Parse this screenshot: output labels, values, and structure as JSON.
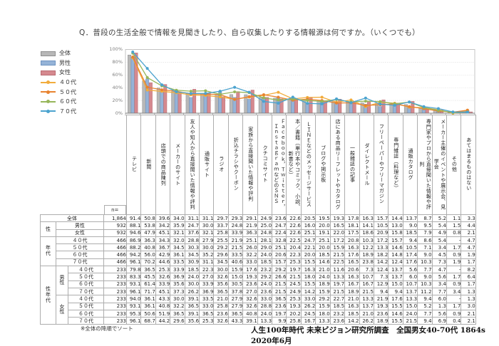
{
  "title": "Q．普段の生活全般で情報を見聞きしたり、自ら収集したりする情報源は何ですか。（いくつでも）",
  "footnote": "※全体の降順でソート",
  "caption": "人生100年時代 未来ビジョン研究所調査　全国男女40-70代 1864s　2020年6月",
  "chart_data": {
    "type": "bar+line",
    "title": "普段の生活全般の情報源（複数回答・%）",
    "ylim": [
      0,
      100
    ],
    "grid": "dotted-horizontal",
    "legend_position": "left",
    "yticks": [
      {
        "label": "0%",
        "value": 0
      },
      {
        "label": "20%",
        "value": 20
      },
      {
        "label": "40%",
        "value": 40
      },
      {
        "label": "60%",
        "value": 60
      },
      {
        "label": "80%",
        "value": 80
      },
      {
        "label": "100%",
        "value": 100
      }
    ],
    "categories": [
      "テレビ",
      "新聞",
      "店頭での商品陳列",
      "メーカーのサイト",
      "友人や知人から直接聞いた情報や評判",
      "通販サイト",
      "ラジオ",
      "折込チラシやクーポン",
      "家族から直接聞いた情報や評判",
      "クチコミサイト",
      "Ｆａｃｅｂｏｏｋ，Ｔｗｉｔｔｅｒ，ＩｎｓｔａｇｒａｍなどのＳＮＳ",
      "本／書籍（単行本やコミック、小説、新書など）",
      "ＬＩＮＥなどのメッセージサービス",
      "ブログや掲示板",
      "店にある商品リーフレットやカタログ",
      "一般雑誌の記事",
      "ダイレクトメール",
      "フリーペーパーやフリーマガジン",
      "専門雑誌（料理など）",
      "通販カタログ",
      "専門家やプロから直接聞いた情報や評判",
      "メーカー主催のイベントや展示会、見学会",
      "その他",
      "あてはまるものはない"
    ],
    "bar_series": [
      {
        "name": "全体",
        "color": "#b8b8b8",
        "edge": "#8f8f8f",
        "values": [
          91.4,
          50.8,
          39.6,
          34.0,
          31.1,
          31.1,
          29.7,
          29.3,
          29.1,
          24.9,
          23.6,
          22.6,
          20.5,
          19.5,
          19.3,
          17.8,
          16.3,
          15.7,
          14.4,
          13.7,
          8.7,
          5.2,
          1.1,
          3.3
        ]
      },
      {
        "name": "男性",
        "color": "#95b3d7",
        "edge": "#6e93c0",
        "values": [
          88.1,
          53.8,
          34.2,
          35.9,
          24.7,
          30.0,
          33.7,
          24.8,
          21.9,
          25.0,
          24.7,
          22.6,
          16.0,
          20.0,
          16.5,
          18.1,
          14.1,
          10.5,
          13.0,
          9.0,
          9.5,
          5.4,
          1.5,
          4.4
        ]
      },
      {
        "name": "女性",
        "color": "#d5898f",
        "edge": "#b96b72",
        "values": [
          94.6,
          47.9,
          45.1,
          32.1,
          37.6,
          32.1,
          25.8,
          33.9,
          36.3,
          24.8,
          22.4,
          22.6,
          25.1,
          19.1,
          22.0,
          17.5,
          18.6,
          20.9,
          15.8,
          18.5,
          7.9,
          4.9,
          0.8,
          2.1
        ]
      }
    ],
    "line_series": [
      {
        "name": "４０代",
        "color": "#f2ac3c",
        "values": [
          86.9,
          36.3,
          34.3,
          32.0,
          28.8,
          27.9,
          25.5,
          21.9,
          25.1,
          28.1,
          32.8,
          22.5,
          24.7,
          25.1,
          17.2,
          20.8,
          10.3,
          17.2,
          15.7,
          9.4,
          8.6,
          5.4,
          0,
          4.7
        ]
      },
      {
        "name": "５０代",
        "color": "#e8832f",
        "values": [
          88.2,
          40.8,
          36.7,
          34.5,
          30.3,
          30.0,
          29.2,
          21.5,
          26.0,
          29.0,
          25.1,
          20.4,
          22.1,
          20.0,
          15.9,
          16.3,
          12.2,
          13.3,
          14.6,
          10.5,
          7.1,
          3.4,
          1.7,
          4.7
        ]
      },
      {
        "name": "６０代",
        "color": "#97b65a",
        "values": [
          94.2,
          56.0,
          42.9,
          36.1,
          34.5,
          35.2,
          29.6,
          33.5,
          32.2,
          24.0,
          20.6,
          22.3,
          20.0,
          18.5,
          21.5,
          17.6,
          18.9,
          18.2,
          14.8,
          17.4,
          9.0,
          4.5,
          0.9,
          1.9
        ]
      },
      {
        "name": "７０代",
        "color": "#4ba3cf",
        "values": [
          96.1,
          70.2,
          44.6,
          33.5,
          30.9,
          31.1,
          34.5,
          40.6,
          33.0,
          18.5,
          15.7,
          25.3,
          15.5,
          14.6,
          22.5,
          16.5,
          23.8,
          14.2,
          12.4,
          17.6,
          10.3,
          7.3,
          1.9,
          1.7
        ]
      }
    ]
  },
  "table": {
    "n_header": "n=",
    "rows": [
      {
        "prefix": [
          {
            "label": "全体",
            "colspan": 3
          }
        ],
        "n": "1,864",
        "values": [
          "91.4",
          "50.8",
          "39.6",
          "34.0",
          "31.1",
          "31.1",
          "29.7",
          "29.3",
          "29.1",
          "24.9",
          "23.6",
          "22.6",
          "20.5",
          "19.5",
          "19.3",
          "17.8",
          "16.3",
          "15.7",
          "14.4",
          "13.7",
          "8.7",
          "5.2",
          "1.1",
          "3.3"
        ]
      },
      {
        "prefix": [
          {
            "label": "性",
            "rowspan": 2
          },
          {
            "label": "男性",
            "colspan": 2
          }
        ],
        "n": "932",
        "values": [
          "88.1",
          "53.8",
          "34.2",
          "35.9",
          "24.7",
          "30.0",
          "33.7",
          "24.8",
          "21.9",
          "25.0",
          "24.7",
          "22.6",
          "16.0",
          "20.0",
          "16.5",
          "18.1",
          "14.1",
          "10.5",
          "13.0",
          "9.0",
          "9.5",
          "5.4",
          "1.5",
          "4.4"
        ]
      },
      {
        "prefix": [
          {
            "label": "女性",
            "colspan": 2
          }
        ],
        "n": "932",
        "values": [
          "94.6",
          "47.9",
          "45.1",
          "32.1",
          "37.6",
          "32.1",
          "25.8",
          "33.9",
          "36.3",
          "24.8",
          "22.4",
          "22.6",
          "25.1",
          "19.1",
          "22.0",
          "17.5",
          "18.6",
          "20.9",
          "15.8",
          "18.5",
          "7.9",
          "4.9",
          "0.8",
          "2.1"
        ]
      },
      {
        "prefix": [
          {
            "label": "年代",
            "rowspan": 4,
            "vert": true
          },
          {
            "label": "４０代",
            "colspan": 2
          }
        ],
        "n": "466",
        "values": [
          "86.9",
          "36.3",
          "34.3",
          "32.0",
          "28.8",
          "27.9",
          "25.5",
          "21.9",
          "25.1",
          "28.1",
          "32.8",
          "22.5",
          "24.7",
          "25.1",
          "17.2",
          "20.8",
          "10.3",
          "17.2",
          "15.7",
          "9.4",
          "8.6",
          "5.4",
          "-",
          "4.7"
        ]
      },
      {
        "prefix": [
          {
            "label": "５０代",
            "colspan": 2
          }
        ],
        "n": "466",
        "values": [
          "88.2",
          "40.8",
          "36.7",
          "34.5",
          "30.3",
          "30.0",
          "29.2",
          "21.5",
          "26.0",
          "29.0",
          "25.1",
          "20.4",
          "22.1",
          "20.0",
          "15.9",
          "16.3",
          "12.2",
          "13.3",
          "14.6",
          "10.5",
          "7.1",
          "3.4",
          "1.7",
          "4.7"
        ]
      },
      {
        "prefix": [
          {
            "label": "６０代",
            "colspan": 2
          }
        ],
        "n": "466",
        "values": [
          "94.2",
          "56.0",
          "42.9",
          "36.1",
          "34.5",
          "35.2",
          "29.6",
          "33.5",
          "32.2",
          "24.0",
          "20.6",
          "22.3",
          "20.0",
          "18.5",
          "21.5",
          "17.6",
          "18.9",
          "18.2",
          "14.8",
          "17.4",
          "9.0",
          "4.5",
          "0.9",
          "1.9"
        ]
      },
      {
        "prefix": [
          {
            "label": "７０代",
            "colspan": 2
          }
        ],
        "n": "466",
        "values": [
          "96.1",
          "70.2",
          "44.6",
          "33.5",
          "30.9",
          "31.1",
          "34.5",
          "40.6",
          "33.0",
          "18.5",
          "15.7",
          "25.3",
          "15.5",
          "14.6",
          "22.5",
          "16.5",
          "23.8",
          "14.2",
          "12.4",
          "17.6",
          "10.3",
          "7.3",
          "1.9",
          "1.7"
        ]
      },
      {
        "prefix": [
          {
            "label": "性年代",
            "rowspan": 8,
            "vert": true
          },
          {
            "label": "男性",
            "rowspan": 4,
            "vert": true
          },
          {
            "label": "４０代"
          }
        ],
        "n": "233",
        "values": [
          "79.8",
          "36.5",
          "25.3",
          "33.9",
          "18.5",
          "22.3",
          "30.0",
          "15.9",
          "17.6",
          "23.2",
          "29.2",
          "19.7",
          "16.3",
          "21.0",
          "11.6",
          "20.6",
          "7.3",
          "12.4",
          "13.7",
          "5.6",
          "7.7",
          "4.7",
          "-",
          "8.2"
        ]
      },
      {
        "prefix": [
          {
            "label": "５０代"
          }
        ],
        "n": "233",
        "values": [
          "83.3",
          "45.5",
          "32.6",
          "36.9",
          "24.0",
          "27.0",
          "32.6",
          "15.0",
          "19.3",
          "29.2",
          "26.6",
          "21.5",
          "18.0",
          "24.0",
          "13.3",
          "16.3",
          "10.7",
          "7.3",
          "13.7",
          "6.0",
          "9.0",
          "5.6",
          "1.7",
          "6.4"
        ]
      },
      {
        "prefix": [
          {
            "label": "６０代"
          }
        ],
        "n": "233",
        "values": [
          "93.1",
          "61.4",
          "33.9",
          "35.6",
          "30.0",
          "33.9",
          "35.6",
          "30.5",
          "23.6",
          "24.0",
          "21.5",
          "24.5",
          "15.5",
          "18.9",
          "19.7",
          "16.7",
          "16.7",
          "12.9",
          "15.0",
          "10.7",
          "10.3",
          "3.4",
          "0.9",
          "1.7"
        ]
      },
      {
        "prefix": [
          {
            "label": "７０代"
          }
        ],
        "n": "233",
        "values": [
          "96.1",
          "71.7",
          "45.1",
          "37.3",
          "26.2",
          "36.9",
          "36.5",
          "37.8",
          "27.0",
          "23.6",
          "21.5",
          "24.9",
          "14.2",
          "15.9",
          "21.5",
          "18.9",
          "21.5",
          "9.4",
          "9.4",
          "13.7",
          "11.2",
          "7.7",
          "3.4",
          "1.3"
        ]
      },
      {
        "prefix": [
          {
            "label": "女性",
            "rowspan": 4,
            "vert": true
          },
          {
            "label": "４０代"
          }
        ],
        "n": "233",
        "values": [
          "94.0",
          "36.1",
          "43.3",
          "30.0",
          "39.1",
          "33.5",
          "21.0",
          "27.9",
          "32.6",
          "33.0",
          "36.5",
          "25.3",
          "33.0",
          "29.2",
          "22.7",
          "21.0",
          "13.3",
          "21.9",
          "17.6",
          "13.3",
          "9.4",
          "6.0",
          "-",
          "1.3"
        ]
      },
      {
        "prefix": [
          {
            "label": "５０代"
          }
        ],
        "n": "233",
        "values": [
          "93.1",
          "36.1",
          "40.8",
          "32.2",
          "36.5",
          "33.0",
          "25.8",
          "27.9",
          "32.6",
          "28.8",
          "23.6",
          "19.3",
          "26.2",
          "15.9",
          "18.5",
          "16.3",
          "13.7",
          "19.3",
          "15.5",
          "15.0",
          "5.2",
          "1.3",
          "1.7",
          "3.0"
        ]
      },
      {
        "prefix": [
          {
            "label": "６０代"
          }
        ],
        "n": "233",
        "values": [
          "95.3",
          "50.6",
          "51.9",
          "36.5",
          "39.1",
          "36.5",
          "23.6",
          "36.5",
          "40.8",
          "24.0",
          "19.7",
          "20.2",
          "24.5",
          "18.0",
          "23.2",
          "18.5",
          "21.0",
          "23.6",
          "14.6",
          "24.0",
          "7.7",
          "5.6",
          "0.9",
          "2.1"
        ]
      },
      {
        "prefix": [
          {
            "label": "７０代"
          }
        ],
        "n": "233",
        "values": [
          "96.1",
          "68.7",
          "44.2",
          "29.6",
          "35.6",
          "25.3",
          "32.6",
          "43.3",
          "39.1",
          "13.3",
          "9.9",
          "25.8",
          "16.7",
          "13.3",
          "23.6",
          "14.2",
          "26.2",
          "18.9",
          "15.5",
          "21.5",
          "9.4",
          "6.9",
          "0.4",
          "2.1"
        ]
      }
    ]
  }
}
